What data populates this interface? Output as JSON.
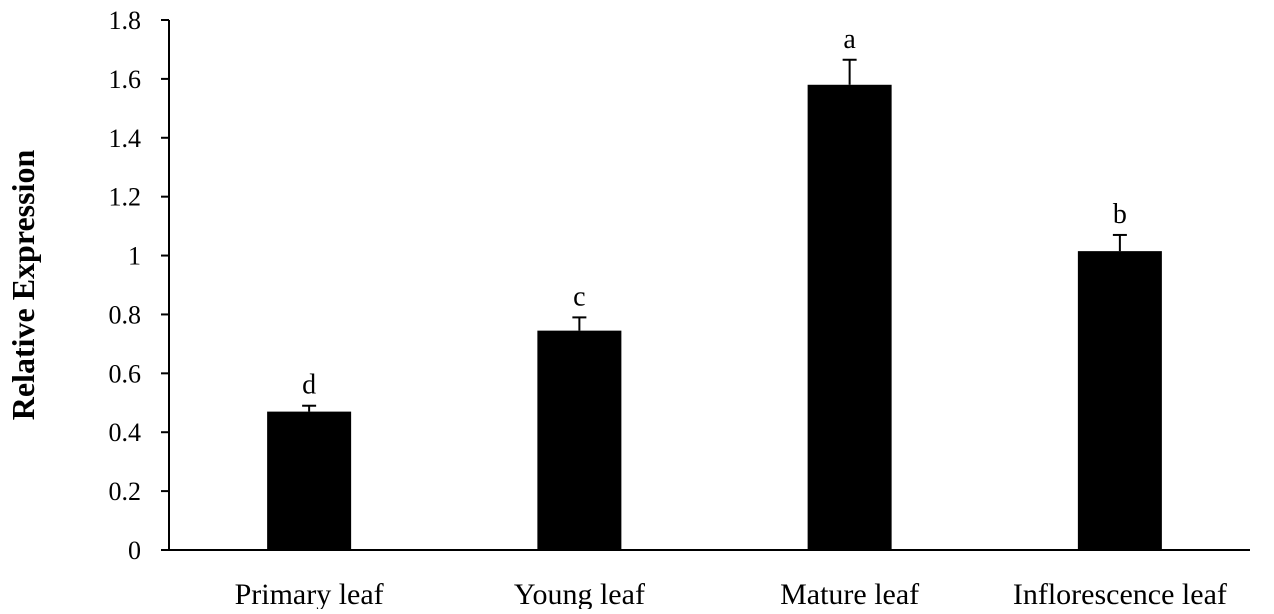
{
  "chart_data": {
    "type": "bar",
    "title": "",
    "xlabel": "",
    "ylabel": "Relative Expression",
    "ylim": [
      0,
      1.8
    ],
    "yticks": [
      "0",
      "0.2",
      "0.4",
      "0.6",
      "0.8",
      "1",
      "1.2",
      "1.4",
      "1.6",
      "1.8"
    ],
    "categories": [
      "Primary leaf",
      "Young leaf",
      "Mature leaf",
      "Inflorescence leaf"
    ],
    "values": [
      0.47,
      0.745,
      1.58,
      1.015
    ],
    "errors": [
      0.02,
      0.045,
      0.085,
      0.055
    ],
    "significance": [
      "d",
      "c",
      "a",
      "b"
    ],
    "bar_color": "#000000",
    "grid": false,
    "legend": "none"
  }
}
